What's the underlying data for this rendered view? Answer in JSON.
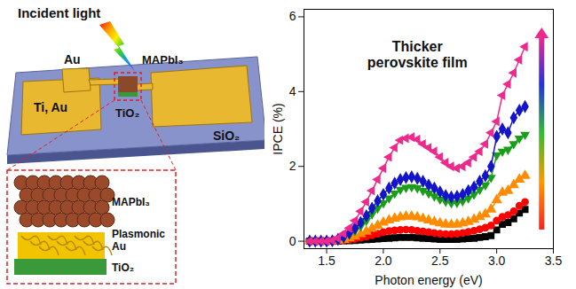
{
  "chart_data": {
    "type": "line",
    "x_label": "Photon energy (eV)",
    "y_label": "IPCE (%)",
    "annotations": [
      "Thicker perovskite film"
    ],
    "xlim": [
      1.3,
      3.5
    ],
    "xticks": [
      1.5,
      {
        "value": 2,
        "label": "2.0"
      },
      2.5,
      {
        "value": 3,
        "label": "3.0"
      },
      3.5
    ],
    "ylim": [
      -0.2,
      6.2
    ],
    "yticks": [
      0,
      2,
      4,
      6
    ],
    "grid": false,
    "x": [
      1.35,
      1.4,
      1.45,
      1.5,
      1.55,
      1.6,
      1.65,
      1.7,
      1.75,
      1.8,
      1.85,
      1.9,
      1.95,
      2.0,
      2.05,
      2.1,
      2.15,
      2.2,
      2.25,
      2.3,
      2.35,
      2.4,
      2.45,
      2.5,
      2.55,
      2.6,
      2.65,
      2.7,
      2.75,
      2.8,
      2.85,
      2.9,
      2.95,
      3.0,
      3.05,
      3.1,
      3.15,
      3.2,
      3.25
    ],
    "series": [
      {
        "color": "#000000",
        "marker": "square",
        "line_style": "solid",
        "values": [
          0,
          0,
          0,
          0,
          0,
          0,
          0.01,
          0.01,
          0.02,
          0.03,
          0.04,
          0.05,
          0.06,
          0.07,
          0.08,
          0.09,
          0.1,
          0.1,
          0.1,
          0.09,
          0.08,
          0.07,
          0.06,
          0.05,
          0.05,
          0.05,
          0.05,
          0.06,
          0.07,
          0.08,
          0.1,
          0.12,
          0.15,
          0.3,
          0.45,
          0.5,
          0.6,
          0.75,
          0.85
        ]
      },
      {
        "color": "#ff0000",
        "marker": "circle",
        "line_style": "solid",
        "values": [
          0,
          0,
          0,
          0,
          0,
          0.01,
          0.02,
          0.04,
          0.06,
          0.09,
          0.12,
          0.16,
          0.2,
          0.24,
          0.27,
          0.29,
          0.3,
          0.31,
          0.3,
          0.28,
          0.26,
          0.24,
          0.22,
          0.2,
          0.19,
          0.19,
          0.2,
          0.22,
          0.25,
          0.28,
          0.32,
          0.36,
          0.42,
          0.55,
          0.65,
          0.7,
          0.8,
          0.95,
          1.05
        ]
      },
      {
        "color": "#ff8c00",
        "marker": "triangle",
        "line_style": "solid",
        "values": [
          0,
          0,
          0,
          0,
          0,
          0.02,
          0.04,
          0.08,
          0.13,
          0.19,
          0.26,
          0.34,
          0.42,
          0.5,
          0.56,
          0.61,
          0.64,
          0.66,
          0.66,
          0.64,
          0.6,
          0.56,
          0.52,
          0.48,
          0.45,
          0.44,
          0.45,
          0.48,
          0.52,
          0.58,
          0.65,
          0.72,
          0.85,
          1.1,
          1.3,
          1.35,
          1.5,
          1.65,
          1.75
        ]
      },
      {
        "color": "#1a9e1a",
        "marker": "triangle-down",
        "line_style": "solid",
        "values": [
          0,
          0,
          0,
          0,
          0.01,
          0.04,
          0.1,
          0.18,
          0.28,
          0.4,
          0.55,
          0.72,
          0.88,
          1.02,
          1.15,
          1.28,
          1.38,
          1.43,
          1.45,
          1.42,
          1.35,
          1.28,
          1.2,
          1.12,
          1.06,
          1.02,
          1.03,
          1.07,
          1.15,
          1.25,
          1.38,
          1.5,
          1.7,
          2.3,
          2.4,
          2.45,
          2.6,
          2.75,
          2.85
        ]
      },
      {
        "color": "#1414c8",
        "marker": "diamond",
        "line_style": "solid",
        "values": [
          0,
          0,
          0,
          0,
          0.01,
          0.05,
          0.12,
          0.22,
          0.35,
          0.5,
          0.68,
          0.88,
          1.08,
          1.25,
          1.42,
          1.55,
          1.65,
          1.7,
          1.72,
          1.68,
          1.6,
          1.5,
          1.42,
          1.32,
          1.22,
          1.18,
          1.2,
          1.25,
          1.35,
          1.45,
          1.6,
          1.75,
          2.0,
          2.8,
          3.0,
          2.9,
          3.3,
          3.5,
          3.6
        ]
      },
      {
        "color": "#ee2a8c",
        "marker": "triangle-left",
        "line_style": "solid",
        "values": [
          0,
          0,
          0,
          0,
          0.02,
          0.08,
          0.2,
          0.35,
          0.55,
          0.8,
          1.05,
          1.35,
          1.65,
          1.95,
          2.25,
          2.5,
          2.7,
          2.75,
          2.78,
          2.72,
          2.6,
          2.5,
          2.4,
          2.25,
          2.1,
          2.0,
          1.95,
          2.0,
          2.1,
          2.25,
          2.4,
          2.6,
          2.9,
          3.2,
          3.9,
          4.2,
          4.5,
          4.85,
          5.2
        ]
      }
    ]
  },
  "diagram": {
    "incident_light": "Incident light",
    "device_labels": {
      "small_electrode": "Au",
      "left_electrode": "Ti, Au",
      "absorber": "MAPbI₃",
      "channel": "TiO₂",
      "substrate": "SiO₂"
    },
    "inset_layers": [
      "MAPbI₃",
      "Plasmonic Au",
      "TiO₂"
    ]
  }
}
